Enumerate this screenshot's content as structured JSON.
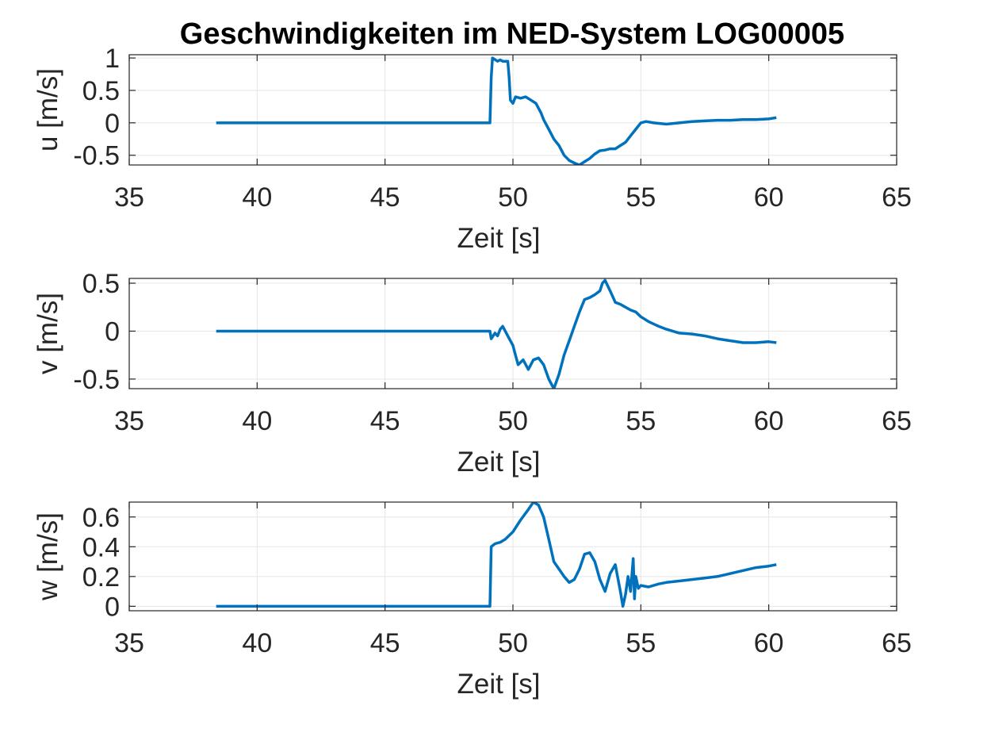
{
  "figure": {
    "title": "Geschwindigkeiten im NED-System LOG00005",
    "line_color": "#0072BD",
    "grid_color": "#e6e6e6",
    "axes_color": "#262626"
  },
  "chart_data": [
    {
      "type": "line",
      "title": "Geschwindigkeiten im NED-System LOG00005",
      "xlabel": "Zeit [s]",
      "ylabel": "u [m/s]",
      "xlim": [
        35,
        65
      ],
      "ylim": [
        -0.65,
        1.05
      ],
      "xticks": [
        35,
        40,
        45,
        50,
        55,
        60,
        65
      ],
      "xtick_labels": [
        "35",
        "40",
        "45",
        "50",
        "55",
        "60",
        "65"
      ],
      "yticks": [
        -0.5,
        0,
        0.5,
        1
      ],
      "ytick_labels": [
        "-0.5",
        "0",
        "0.5",
        "1"
      ],
      "grid": true,
      "series": [
        {
          "x": [
            38.4,
            45.0,
            49.1,
            49.15,
            49.2,
            49.4,
            49.5,
            49.6,
            49.8,
            49.85,
            49.9,
            50.0,
            50.1,
            50.3,
            50.5,
            50.7,
            50.9,
            51.1,
            51.2,
            51.4,
            51.6,
            51.8,
            52.0,
            52.2,
            52.4,
            52.6,
            52.8,
            53.0,
            53.2,
            53.4,
            53.6,
            53.8,
            54.0,
            54.2,
            54.4,
            54.6,
            54.8,
            55.0,
            55.2,
            55.5,
            56.0,
            56.5,
            57.0,
            57.5,
            58.0,
            58.5,
            59.0,
            59.5,
            60.0,
            60.3
          ],
          "y": [
            0,
            0,
            0,
            0.7,
            1.0,
            0.95,
            0.97,
            0.95,
            0.95,
            0.7,
            0.35,
            0.3,
            0.4,
            0.38,
            0.4,
            0.35,
            0.3,
            0.15,
            0.05,
            -0.1,
            -0.25,
            -0.35,
            -0.5,
            -0.58,
            -0.62,
            -0.65,
            -0.6,
            -0.55,
            -0.48,
            -0.43,
            -0.42,
            -0.4,
            -0.4,
            -0.35,
            -0.3,
            -0.2,
            -0.1,
            0.0,
            0.02,
            0.0,
            -0.02,
            0.0,
            0.02,
            0.03,
            0.04,
            0.04,
            0.05,
            0.05,
            0.06,
            0.08
          ]
        }
      ]
    },
    {
      "type": "line",
      "xlabel": "Zeit [s]",
      "ylabel": "v [m/s]",
      "xlim": [
        35,
        65
      ],
      "ylim": [
        -0.6,
        0.55
      ],
      "xticks": [
        35,
        40,
        45,
        50,
        55,
        60,
        65
      ],
      "xtick_labels": [
        "35",
        "40",
        "45",
        "50",
        "55",
        "60",
        "65"
      ],
      "yticks": [
        -0.5,
        0,
        0.5
      ],
      "ytick_labels": [
        "-0.5",
        "0",
        "0.5"
      ],
      "grid": true,
      "series": [
        {
          "x": [
            38.4,
            45.0,
            49.1,
            49.15,
            49.3,
            49.4,
            49.5,
            49.6,
            49.8,
            50.0,
            50.1,
            50.2,
            50.4,
            50.6,
            50.8,
            51.0,
            51.2,
            51.4,
            51.5,
            51.6,
            51.8,
            52.0,
            52.2,
            52.4,
            52.6,
            52.8,
            53.0,
            53.2,
            53.4,
            53.5,
            53.6,
            53.8,
            54.0,
            54.2,
            54.4,
            54.6,
            54.8,
            55.0,
            55.3,
            55.7,
            56.0,
            56.5,
            57.0,
            57.5,
            58.0,
            58.5,
            59.0,
            59.5,
            60.0,
            60.3
          ],
          "y": [
            0,
            0,
            0,
            -0.08,
            -0.02,
            -0.05,
            0.02,
            0.05,
            -0.05,
            -0.15,
            -0.25,
            -0.35,
            -0.3,
            -0.4,
            -0.3,
            -0.28,
            -0.35,
            -0.5,
            -0.55,
            -0.6,
            -0.45,
            -0.25,
            -0.1,
            0.05,
            0.2,
            0.33,
            0.35,
            0.38,
            0.42,
            0.5,
            0.53,
            0.42,
            0.3,
            0.28,
            0.25,
            0.22,
            0.2,
            0.15,
            0.1,
            0.05,
            0.02,
            -0.02,
            -0.03,
            -0.05,
            -0.08,
            -0.1,
            -0.12,
            -0.12,
            -0.11,
            -0.12
          ]
        }
      ]
    },
    {
      "type": "line",
      "xlabel": "Zeit [s]",
      "ylabel": "w [m/s]",
      "xlim": [
        35,
        65
      ],
      "ylim": [
        -0.03,
        0.7
      ],
      "xticks": [
        35,
        40,
        45,
        50,
        55,
        60,
        65
      ],
      "xtick_labels": [
        "35",
        "40",
        "45",
        "50",
        "55",
        "60",
        "65"
      ],
      "yticks": [
        0,
        0.2,
        0.4,
        0.6
      ],
      "ytick_labels": [
        "0",
        "0.2",
        "0.4",
        "0.6"
      ],
      "grid": true,
      "series": [
        {
          "x": [
            38.4,
            45.0,
            49.1,
            49.15,
            49.3,
            49.5,
            49.7,
            50.0,
            50.3,
            50.6,
            50.8,
            51.0,
            51.2,
            51.4,
            51.6,
            51.8,
            52.0,
            52.2,
            52.4,
            52.6,
            52.8,
            53.0,
            53.2,
            53.4,
            53.6,
            53.8,
            54.0,
            54.2,
            54.3,
            54.4,
            54.5,
            54.6,
            54.7,
            54.75,
            54.8,
            54.9,
            55.0,
            55.3,
            55.7,
            56.0,
            56.5,
            57.0,
            57.5,
            58.0,
            58.5,
            59.0,
            59.5,
            60.0,
            60.3
          ],
          "y": [
            0,
            0,
            0,
            0.4,
            0.42,
            0.43,
            0.45,
            0.5,
            0.58,
            0.65,
            0.7,
            0.68,
            0.6,
            0.45,
            0.3,
            0.25,
            0.2,
            0.16,
            0.18,
            0.25,
            0.35,
            0.36,
            0.3,
            0.18,
            0.1,
            0.22,
            0.28,
            0.1,
            0.0,
            0.08,
            0.2,
            0.1,
            0.32,
            0.05,
            0.2,
            0.12,
            0.14,
            0.13,
            0.15,
            0.16,
            0.17,
            0.18,
            0.19,
            0.2,
            0.22,
            0.24,
            0.26,
            0.27,
            0.28
          ]
        }
      ]
    }
  ]
}
